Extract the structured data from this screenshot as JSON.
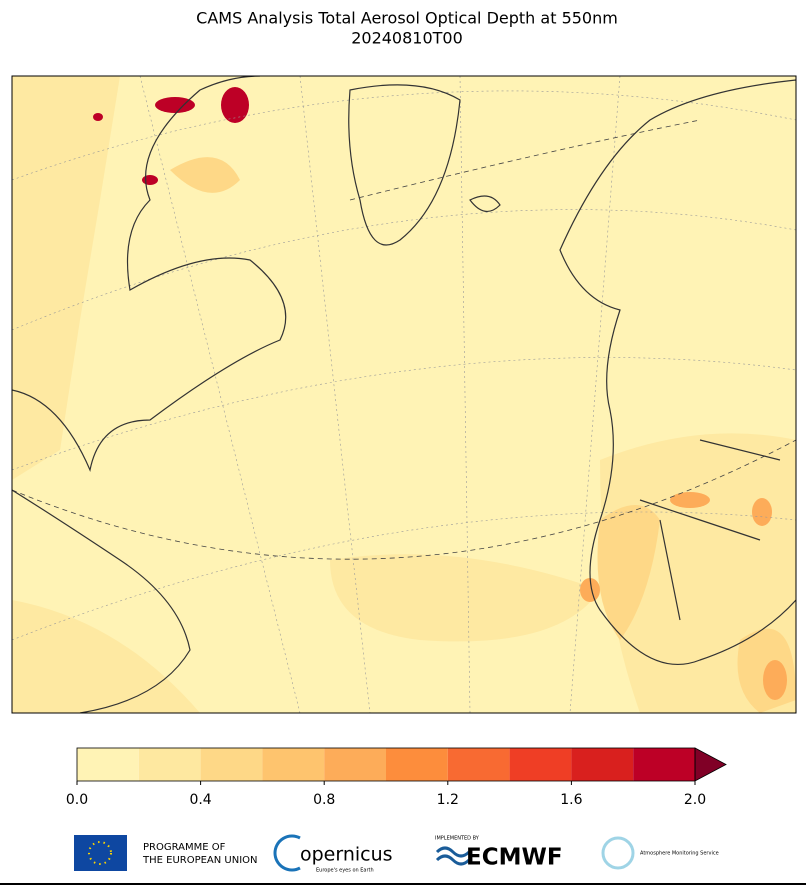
{
  "header": {
    "title": "CAMS Analysis Total Aerosol Optical Depth at 550nm",
    "subtitle": "20240810T00"
  },
  "colorbar": {
    "xlim": [
      0,
      2
    ],
    "levels": [
      0,
      0.2,
      0.4,
      0.6,
      0.8,
      1,
      1.2,
      1.4,
      1.6,
      1.8,
      2
    ],
    "colors": [
      "#fff3b5",
      "#fee8a0",
      "#fed887",
      "#fec46e",
      "#fdac59",
      "#fd8d3c",
      "#f86a32",
      "#ef3e25",
      "#d9201e",
      "#bd0026"
    ],
    "extend_color": "#800026",
    "ticks": [
      {
        "value": 0,
        "label": "0.0"
      },
      0.4,
      0.8,
      1.2,
      1.6,
      {
        "value": 2,
        "label": "2.0"
      }
    ]
  },
  "footer": {
    "eu_line1": "PROGRAMME OF",
    "eu_line2": "THE EUROPEAN UNION",
    "copernicus": "opernicus",
    "copernicus_tagline": "Europe's eyes on Earth",
    "implemented_by": "IMPLEMENTED BY",
    "ecmwf": "ECMWF",
    "cams": "Atmosphere Monitoring Service"
  }
}
